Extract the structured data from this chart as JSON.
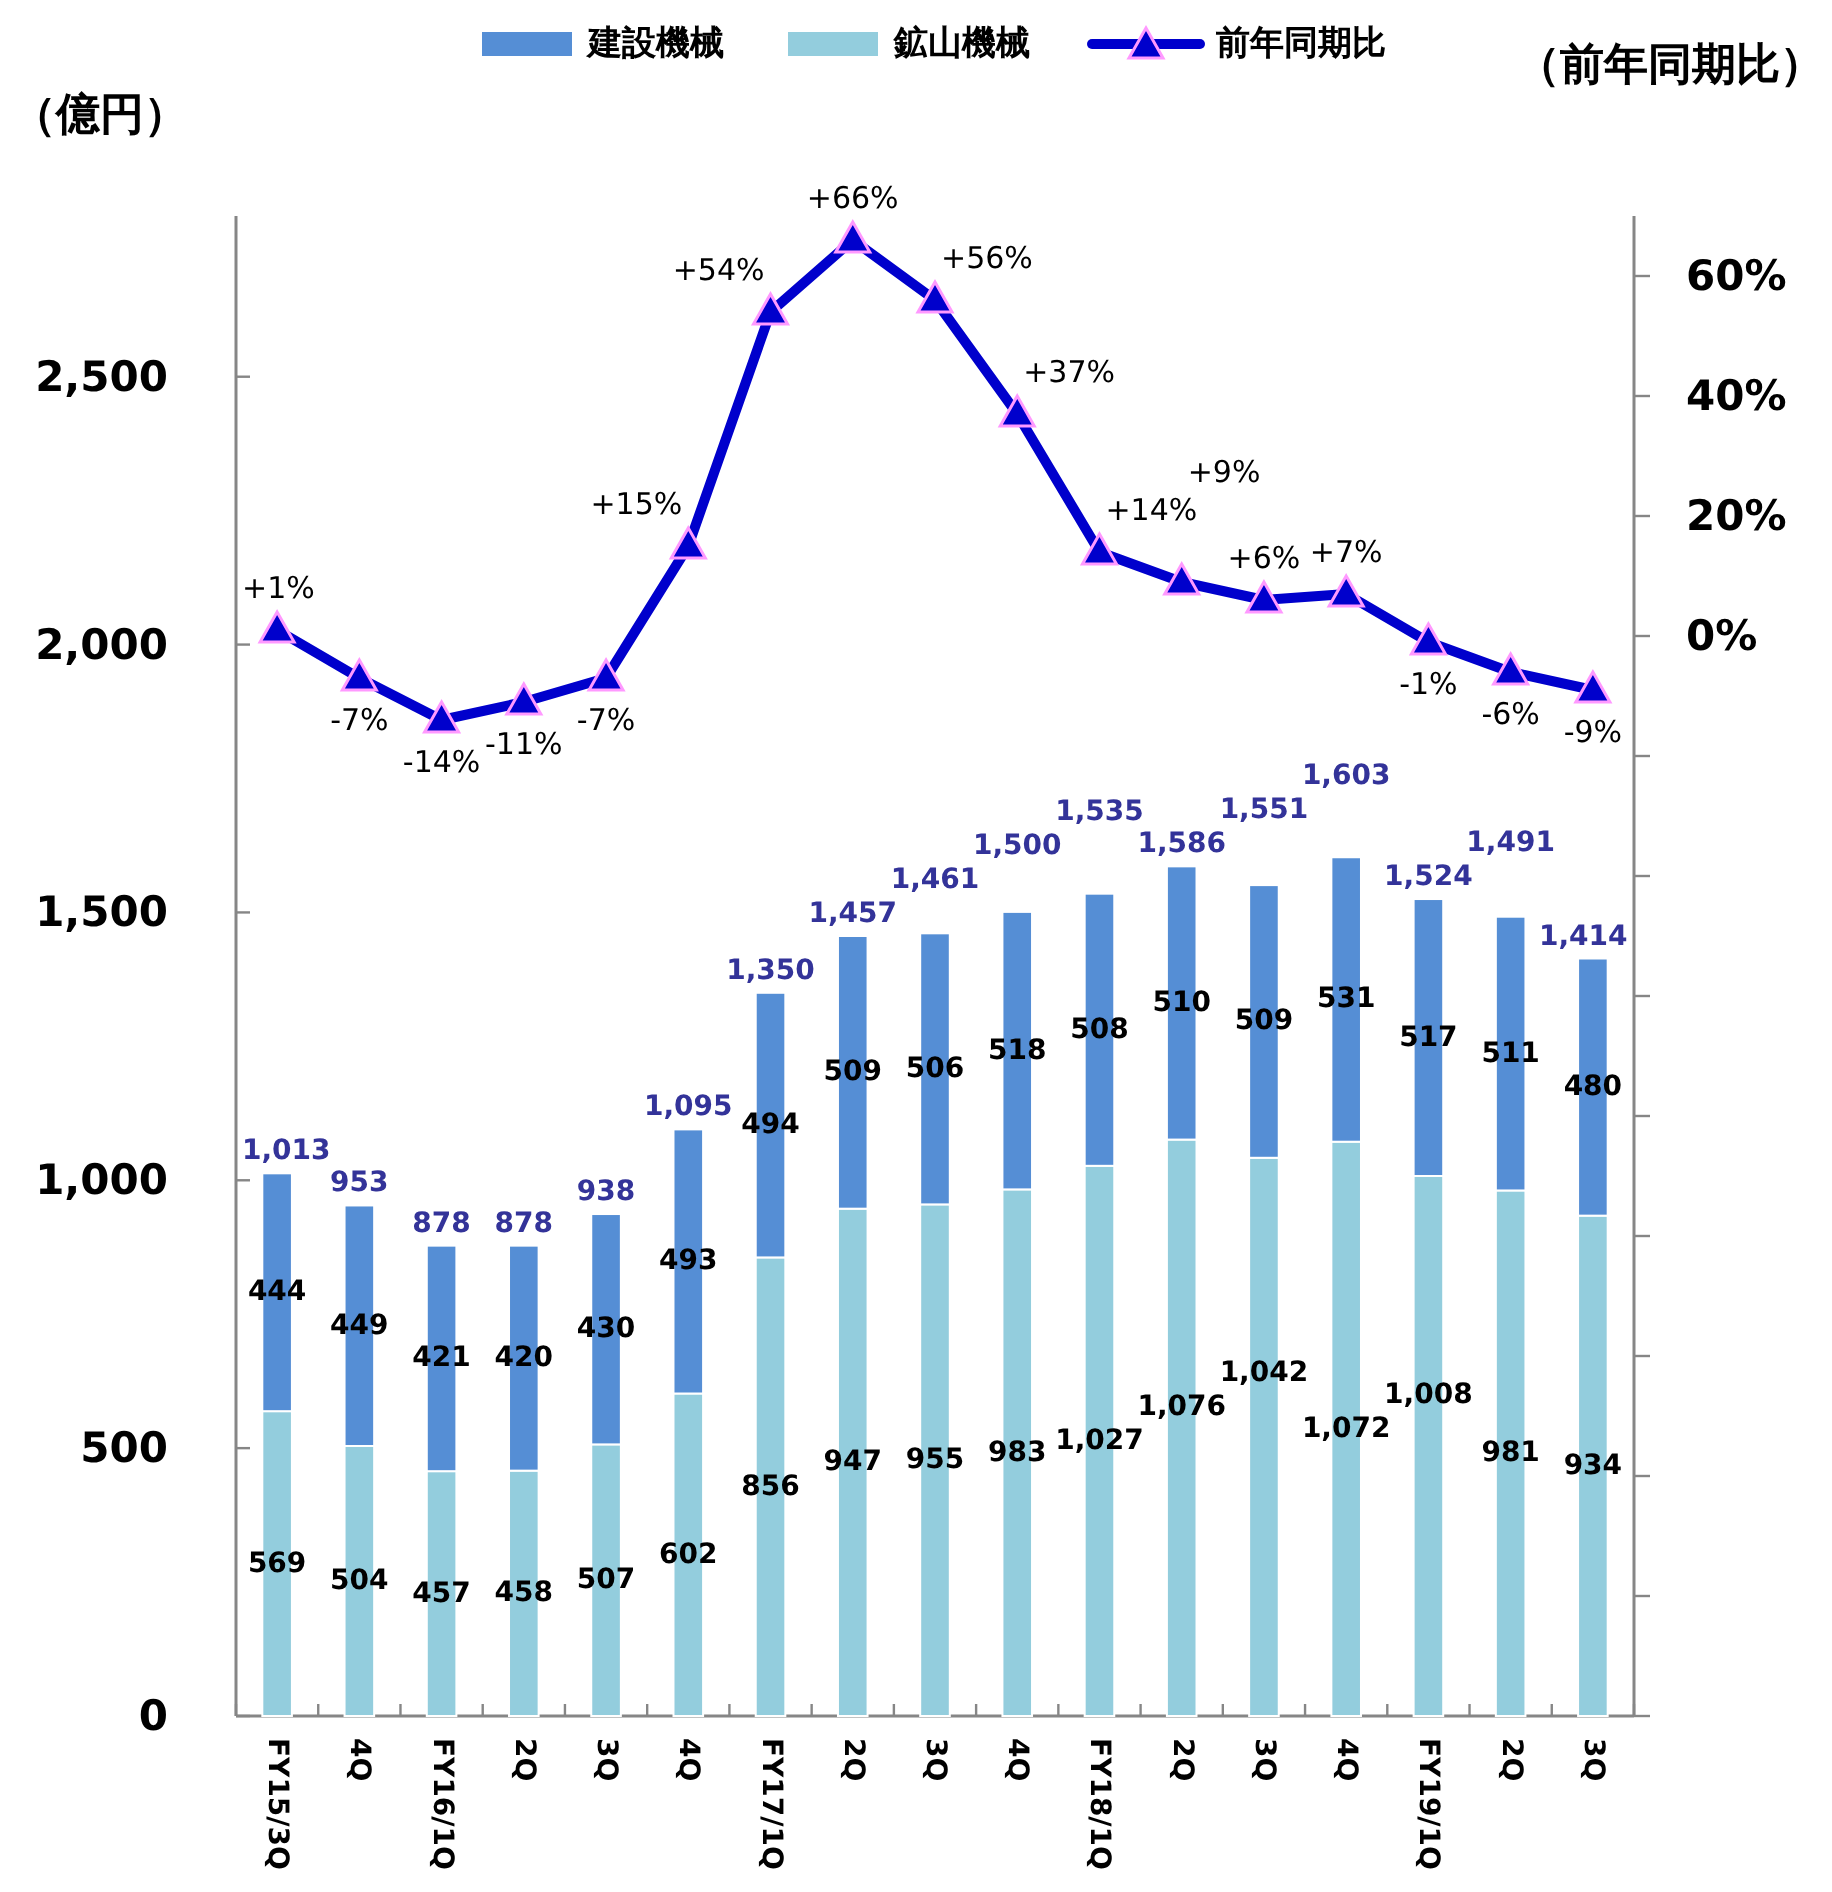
{
  "chart_data": {
    "type": "bar",
    "stacked": true,
    "legend": "top",
    "marker": "triangle",
    "ylabel": "（億円）",
    "y2label": "（前年同期比）",
    "categories": [
      "FY15/3Q",
      "4Q",
      "FY16/1Q",
      "2Q",
      "3Q",
      "4Q",
      "FY17/1Q",
      "2Q",
      "3Q",
      "4Q",
      "FY18/1Q",
      "2Q",
      "3Q",
      "4Q",
      "FY19/1Q",
      "2Q",
      "3Q"
    ],
    "ylim": [
      0,
      2800
    ],
    "yticks": [
      0,
      500,
      {
        "value": 1000,
        "label": "1,000"
      },
      {
        "value": 1500,
        "label": "1,500"
      },
      {
        "value": 2000,
        "label": "2,000"
      },
      {
        "value": 2500,
        "label": "2,500"
      }
    ],
    "y2lim": [
      -180,
      70
    ],
    "y2ticks": [
      {
        "value": 60,
        "label": "60%"
      },
      {
        "value": 40,
        "label": "40%"
      },
      {
        "value": 20,
        "label": "20%"
      },
      {
        "value": 0,
        "label": "0%"
      },
      {
        "value": -20,
        "label": null
      },
      {
        "value": -40,
        "label": null
      },
      {
        "value": -60,
        "label": null
      },
      {
        "value": -80,
        "label": null
      },
      {
        "value": -100,
        "label": null
      },
      {
        "value": -120,
        "label": null
      },
      {
        "value": -140,
        "label": null
      },
      {
        "value": -160,
        "label": null
      },
      {
        "value": -180,
        "label": null
      }
    ],
    "series": [
      {
        "name": "鉱山機械",
        "color": "#93cddd",
        "values": [
          569,
          504,
          457,
          458,
          507,
          602,
          856,
          947,
          955,
          983,
          1027,
          1076,
          1042,
          1072,
          1008,
          981,
          934
        ],
        "value_labels": [
          "569",
          "504",
          "457",
          "458",
          "507",
          "602",
          "856",
          "947",
          "955",
          "983",
          "1,027",
          "1,076",
          "1,042",
          "1,072",
          "1,008",
          "981",
          "934"
        ]
      },
      {
        "name": "建設機械",
        "color": "#558ed5",
        "values": [
          444,
          449,
          421,
          420,
          430,
          493,
          494,
          509,
          506,
          518,
          508,
          510,
          509,
          531,
          517,
          511,
          480
        ],
        "value_labels": [
          "444",
          "449",
          "421",
          "420",
          "430",
          "493",
          "494",
          "509",
          "506",
          "518",
          "508",
          "510",
          "509",
          "531",
          "517",
          "511",
          "480"
        ]
      },
      {
        "name": "前年同期比",
        "type": "line",
        "axis": "y2",
        "color": "#0000cc",
        "values": [
          1,
          -7,
          -14,
          -11,
          -7,
          15,
          54,
          66,
          56,
          37,
          14,
          9,
          6,
          7,
          -1,
          -6,
          -9
        ],
        "value_labels": [
          "+1%",
          "-7%",
          "-14%",
          "-11%",
          "-7%",
          "+15%",
          "+54%",
          "+66%",
          "+56%",
          "+37%",
          "+14%",
          "+9%",
          "+6%",
          "+7%",
          "-1%",
          "-6%",
          "-9%"
        ]
      }
    ],
    "totals": [
      "1,013",
      "953",
      "878",
      "878",
      "938",
      "1,095",
      "1,350",
      "1,457",
      "1,461",
      "1,500",
      "1,535",
      "1,586",
      "1,551",
      "1,603",
      "1,524",
      "1,491",
      "1,414"
    ]
  }
}
